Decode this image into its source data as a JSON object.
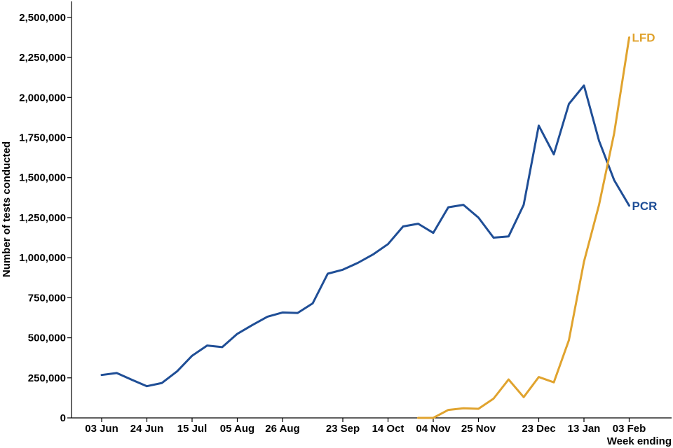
{
  "chart_data": {
    "type": "line",
    "xlabel": "Week ending",
    "ylabel": "Number of tests conducted",
    "ylim": [
      0,
      2600000
    ],
    "y_ticks": [
      0,
      250000,
      500000,
      750000,
      1000000,
      1250000,
      1500000,
      1750000,
      2000000,
      2250000,
      2500000
    ],
    "y_tick_labels": [
      "0",
      "250,000",
      "500,000",
      "750,000",
      "1,000,000",
      "1,250,000",
      "1,500,000",
      "1,750,000",
      "2,000,000",
      "2,250,000",
      "2,500,000"
    ],
    "x_weeks": [
      "03 Jun",
      "10 Jun",
      "17 Jun",
      "24 Jun",
      "01 Jul",
      "08 Jul",
      "15 Jul",
      "22 Jul",
      "29 Jul",
      "05 Aug",
      "12 Aug",
      "19 Aug",
      "26 Aug",
      "02 Sep",
      "09 Sep",
      "16 Sep",
      "23 Sep",
      "30 Sep",
      "07 Oct",
      "14 Oct",
      "21 Oct",
      "28 Oct",
      "04 Nov",
      "11 Nov",
      "18 Nov",
      "25 Nov",
      "02 Dec",
      "09 Dec",
      "16 Dec",
      "23 Dec",
      "30 Dec",
      "06 Jan",
      "13 Jan",
      "20 Jan",
      "27 Jan",
      "03 Feb"
    ],
    "x_tick_labels": [
      {
        "week": "03 Jun",
        "label": "03 Jun"
      },
      {
        "week": "24 Jun",
        "label": "24 Jun"
      },
      {
        "week": "15 Jul",
        "label": "15 Jul"
      },
      {
        "week": "05 Aug",
        "label": "05 Aug"
      },
      {
        "week": "26 Aug",
        "label": "26 Aug"
      },
      {
        "week": "23 Sep",
        "label": "23 Sep"
      },
      {
        "week": "14 Oct",
        "label": "14 Oct"
      },
      {
        "week": "04 Nov",
        "label": "04 Nov"
      },
      {
        "week": "25 Nov",
        "label": "25 Nov"
      },
      {
        "week": "23 Dec",
        "label": "23 Dec"
      },
      {
        "week": "13 Jan",
        "label": "13 Jan"
      },
      {
        "week": "03 Feb",
        "label": "03 Feb"
      }
    ],
    "series": [
      {
        "name": "PCR",
        "color": "#1f4e96",
        "points": [
          [
            "03 Jun",
            268000
          ],
          [
            "10 Jun",
            280000
          ],
          [
            "17 Jun",
            238000
          ],
          [
            "24 Jun",
            198000
          ],
          [
            "01 Jul",
            218000
          ],
          [
            "08 Jul",
            290000
          ],
          [
            "15 Jul",
            388000
          ],
          [
            "22 Jul",
            452000
          ],
          [
            "29 Jul",
            442000
          ],
          [
            "05 Aug",
            525000
          ],
          [
            "12 Aug",
            580000
          ],
          [
            "19 Aug",
            632000
          ],
          [
            "26 Aug",
            658000
          ],
          [
            "02 Sep",
            655000
          ],
          [
            "09 Sep",
            715000
          ],
          [
            "16 Sep",
            900000
          ],
          [
            "23 Sep",
            925000
          ],
          [
            "30 Sep",
            968000
          ],
          [
            "07 Oct",
            1020000
          ],
          [
            "14 Oct",
            1085000
          ],
          [
            "21 Oct",
            1195000
          ],
          [
            "28 Oct",
            1212000
          ],
          [
            "04 Nov",
            1155000
          ],
          [
            "11 Nov",
            1315000
          ],
          [
            "18 Nov",
            1330000
          ],
          [
            "25 Nov",
            1250000
          ],
          [
            "02 Dec",
            1125000
          ],
          [
            "09 Dec",
            1133000
          ],
          [
            "16 Dec",
            1330000
          ],
          [
            "23 Dec",
            1825000
          ],
          [
            "30 Dec",
            1645000
          ],
          [
            "06 Jan",
            1960000
          ],
          [
            "13 Jan",
            2075000
          ],
          [
            "20 Jan",
            1730000
          ],
          [
            "27 Jan",
            1485000
          ],
          [
            "03 Feb",
            1325000
          ]
        ]
      },
      {
        "name": "LFD",
        "color": "#e0a32e",
        "points": [
          [
            "28 Oct",
            0
          ],
          [
            "04 Nov",
            0
          ],
          [
            "11 Nov",
            50000
          ],
          [
            "18 Nov",
            60000
          ],
          [
            "25 Nov",
            57000
          ],
          [
            "02 Dec",
            120000
          ],
          [
            "09 Dec",
            240000
          ],
          [
            "16 Dec",
            130000
          ],
          [
            "23 Dec",
            255000
          ],
          [
            "30 Dec",
            222000
          ],
          [
            "06 Jan",
            485000
          ],
          [
            "13 Jan",
            975000
          ],
          [
            "20 Jan",
            1330000
          ],
          [
            "27 Jan",
            1775000
          ],
          [
            "03 Feb",
            2375000
          ]
        ]
      }
    ]
  }
}
